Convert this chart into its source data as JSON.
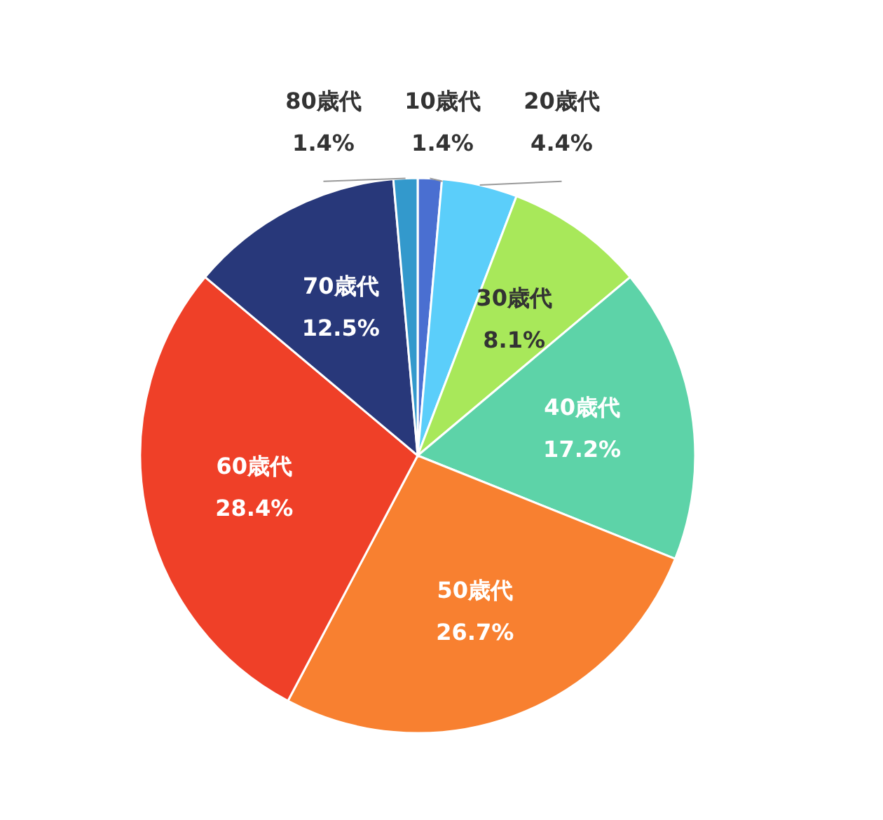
{
  "chart_data": {
    "type": "pie",
    "categories": [
      "10歳代",
      "20歳代",
      "30歳代",
      "40歳代",
      "50歳代",
      "60歳代",
      "70歳代",
      "80歳代"
    ],
    "values": [
      1.4,
      4.4,
      8.1,
      17.2,
      26.7,
      28.4,
      12.5,
      1.4
    ],
    "value_labels": [
      "1.4%",
      "4.4%",
      "8.1%",
      "17.2%",
      "26.7%",
      "28.4%",
      "12.5%",
      "1.4%"
    ],
    "colors": [
      "#4a6fd1",
      "#5bcefa",
      "#a8e85a",
      "#5dd3a8",
      "#f88030",
      "#ef4028",
      "#28387a",
      "#3399cc"
    ]
  }
}
